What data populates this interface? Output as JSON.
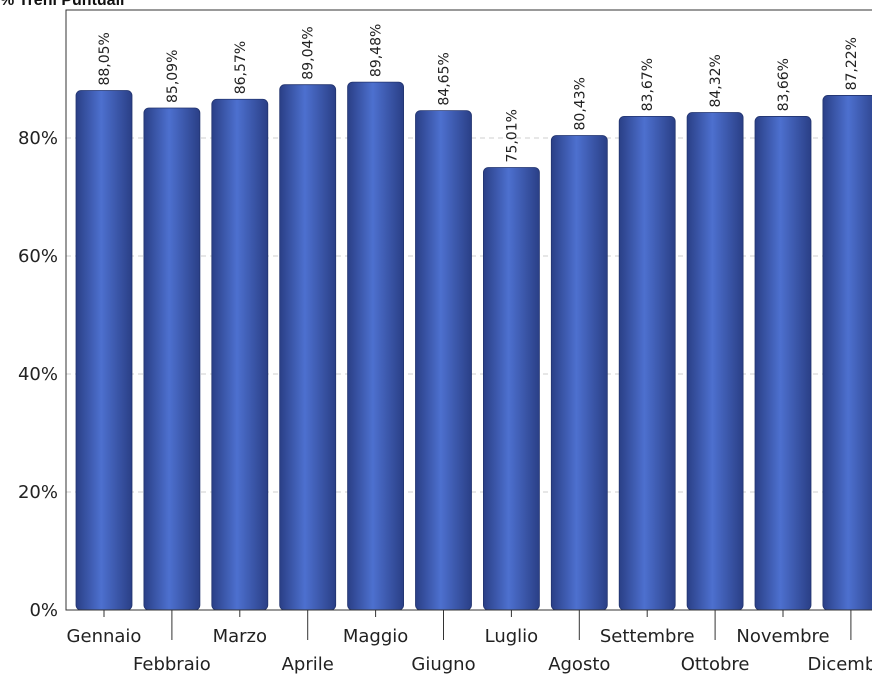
{
  "chart_data": {
    "type": "bar",
    "title": "% Treni Puntuali",
    "xlabel": "",
    "ylabel": "",
    "categories": [
      "Gennaio",
      "Febbraio",
      "Marzo",
      "Aprile",
      "Maggio",
      "Giugno",
      "Luglio",
      "Agosto",
      "Settembre",
      "Ottobre",
      "Novembre",
      "Dicembre"
    ],
    "values": [
      88.05,
      85.09,
      86.57,
      89.04,
      89.48,
      84.65,
      75.01,
      80.43,
      83.67,
      84.32,
      83.66,
      87.22
    ],
    "value_labels": [
      "88,05%",
      "85,09%",
      "86,57%",
      "89,04%",
      "89,48%",
      "84,65%",
      "75,01%",
      "80,43%",
      "83,67%",
      "84,32%",
      "83,66%",
      "87,22%"
    ],
    "ylim": [
      0,
      100
    ],
    "yticks": [
      0,
      20,
      40,
      60,
      80
    ],
    "ytick_labels": [
      "0%",
      "20%",
      "40%",
      "60%",
      "80%"
    ],
    "grid": "horizontal dashed",
    "legend": "none",
    "bar_color": "#3b55a8"
  }
}
